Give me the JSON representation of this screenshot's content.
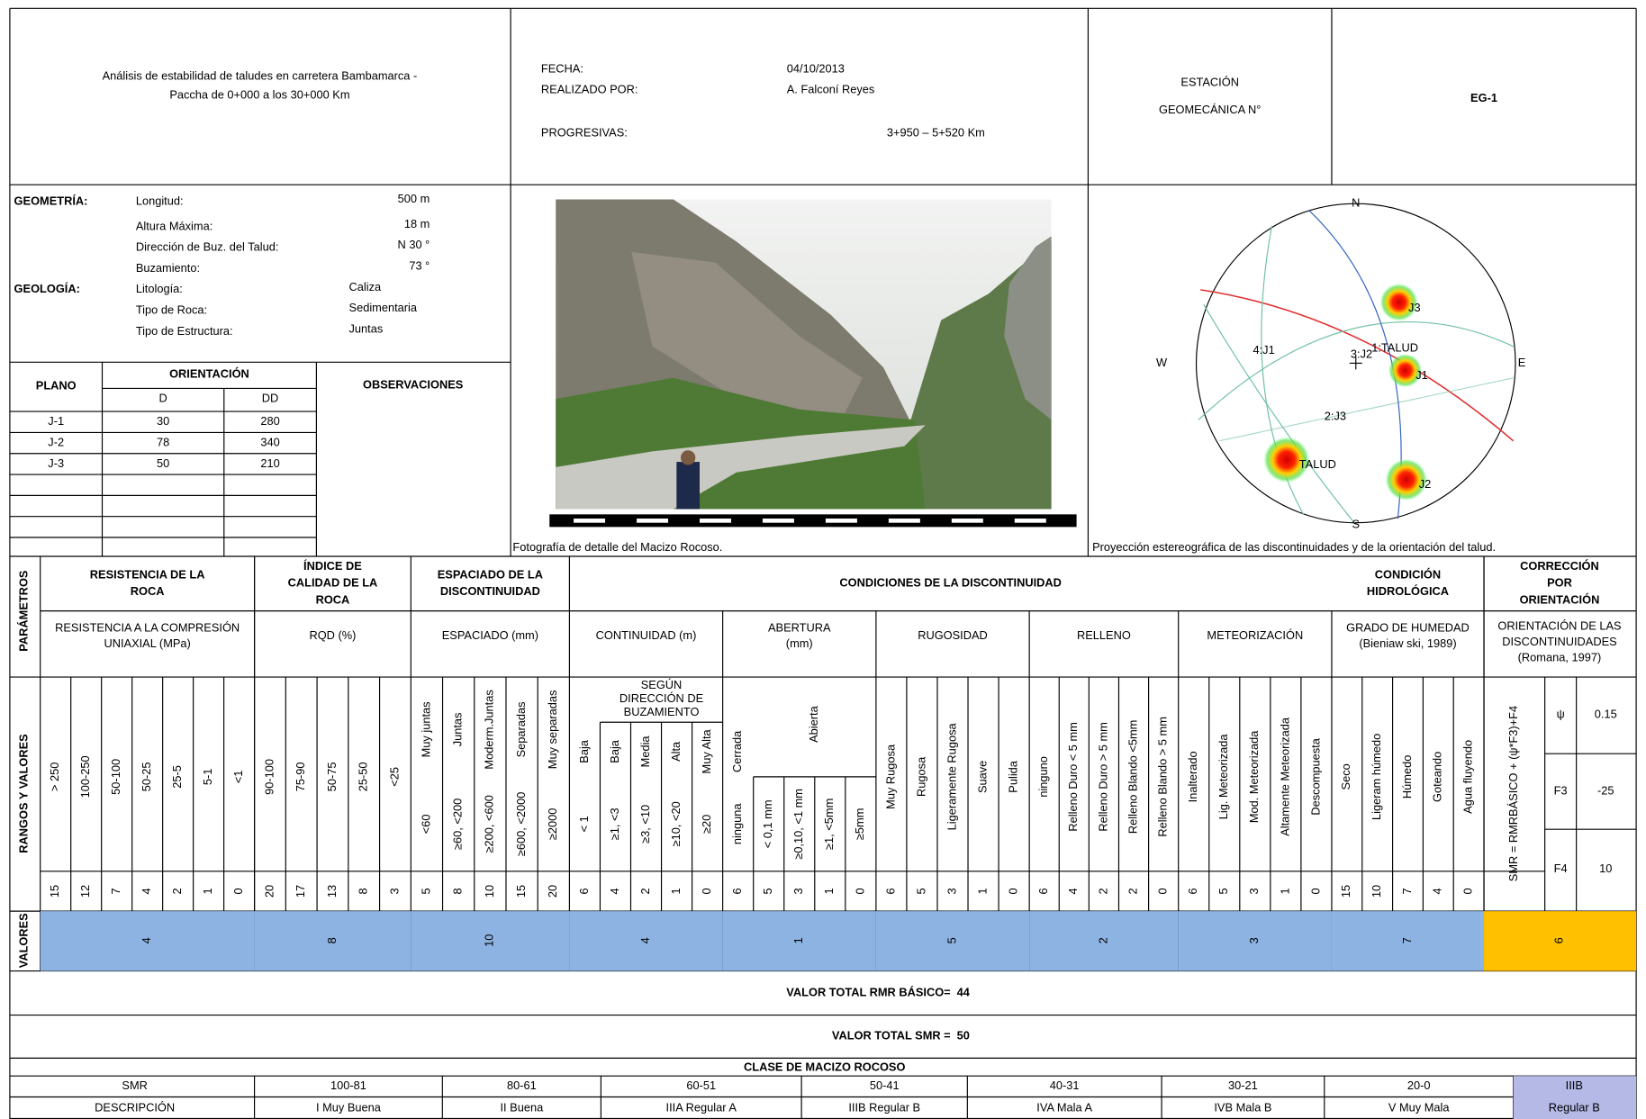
{
  "header": {
    "project": [
      "Análisis de estabilidad de taludes en carretera Bambamarca -",
      "Paccha de 0+000 a los 30+000 Km"
    ],
    "fields": [
      {
        "label": "FECHA:",
        "value": "04/10/2013"
      },
      {
        "label": "REALIZADO POR:",
        "value": "A. Falconí Reyes"
      },
      {
        "label": "PROGRESIVAS:",
        "value": "3+950 – 5+520 Km"
      }
    ],
    "station_label": [
      "ESTACIÓN",
      "GEOMECÁNICA N°"
    ],
    "station": "EG-1"
  },
  "geometry": {
    "title": "GEOMETRÍA:",
    "items": [
      [
        "Longitud:",
        "500 m"
      ],
      [
        "Altura Máxima:",
        "18 m"
      ],
      [
        "Dirección de Buz. del Talud:",
        "N 30 °"
      ],
      [
        "Buzamiento:",
        "73 °"
      ]
    ]
  },
  "geology": {
    "title": "GEOLOGÍA:",
    "items": [
      [
        "Litología:",
        "Caliza"
      ],
      [
        "Tipo de Roca:",
        "Sedimentaria"
      ],
      [
        "Tipo de Estructura:",
        "Juntas"
      ]
    ]
  },
  "planes": {
    "headers": {
      "plane": "PLANO",
      "orientation": "ORIENTACIÓN",
      "d": "D",
      "dd": "DD",
      "observations": "OBSERVACIONES"
    },
    "rows": [
      [
        "J-1",
        30,
        280
      ],
      [
        "J-2",
        78,
        340
      ],
      [
        "J-3",
        50,
        210
      ]
    ]
  },
  "photo": {
    "caption": "Fotografía de detalle del Macizo Rocoso."
  },
  "stereonet": {
    "caption": "Proyección estereográfica de las discontinuidades y de la orientación del talud.",
    "directions": [
      "N",
      "E",
      "S",
      "W"
    ],
    "labels": [
      "4:J1",
      "3:J2",
      "1:TALUD",
      "2:J3"
    ],
    "pole_labels": [
      "J3",
      "J1",
      "TALUD",
      "J2"
    ]
  },
  "parameters": {
    "side_labels": {
      "params": "PARÁMETROS",
      "ranges": "RANGOS Y VALORES",
      "values": "VALORES"
    },
    "conditions_title": "CONDICIONES DE LA DISCONTINUIDAD",
    "groups": [
      {
        "title": [
          "RESISTENCIA DE LA",
          "ROCA"
        ],
        "subtitle": [
          "RESISTENCIA A LA COMPRESIÓN",
          "UNIAXIAL (MPa)"
        ],
        "items": [
          {
            "label": "> 250",
            "rating": 15
          },
          {
            "label": "100-250",
            "rating": 12
          },
          {
            "label": "50-100",
            "rating": 7
          },
          {
            "label": "50-25",
            "rating": 4
          },
          {
            "label": "25-5",
            "rating": 2
          },
          {
            "label": "5-1",
            "rating": 1
          },
          {
            "label": "<1",
            "rating": 0
          }
        ],
        "value": 4
      },
      {
        "title": [
          "ÍNDICE DE",
          "CALIDAD DE LA",
          "ROCA"
        ],
        "subtitle": [
          "RQD (%)"
        ],
        "items": [
          {
            "label": "90-100",
            "rating": 20
          },
          {
            "label": "75-90",
            "rating": 17
          },
          {
            "label": "50-75",
            "rating": 13
          },
          {
            "label": "25-50",
            "rating": 8
          },
          {
            "label": "<25",
            "rating": 3
          }
        ],
        "value": 8
      },
      {
        "title": [
          "ESPACIADO DE LA",
          "DISCONTINUIDAD"
        ],
        "subtitle": [
          "ESPACIADO (mm)"
        ],
        "items": [
          {
            "label": "Muy juntas",
            "range": "<60",
            "rating": 5
          },
          {
            "label": "Juntas",
            "range": "≥60, <200",
            "rating": 8
          },
          {
            "label": "Moderm.Juntas",
            "range": "≥200, <600",
            "rating": 10
          },
          {
            "label": "Separadas",
            "range": "≥600, <2000",
            "rating": 15
          },
          {
            "label": "Muy separadas",
            "range": "≥2000",
            "rating": 20
          }
        ],
        "value": 10
      },
      {
        "subtitle": [
          "CONTINUIDAD (m)"
        ],
        "span_label": [
          "SEGÚN",
          "DIRECCIÓN DE",
          "BUZAMIENTO"
        ],
        "items": [
          {
            "label": "Baja",
            "range": "< 1",
            "rating": 6
          },
          {
            "label": "Baja",
            "range": "≥1, <3",
            "rating": 4
          },
          {
            "label": "Media",
            "range": "≥3, <10",
            "rating": 2
          },
          {
            "label": "Alta",
            "range": "≥10, <20",
            "rating": 1
          },
          {
            "label": "Muy Alta",
            "range": "≥20",
            "rating": 0
          }
        ],
        "value": 4
      },
      {
        "subtitle": [
          "ABERTURA",
          "(mm)"
        ],
        "span_label": [
          "Abierta"
        ],
        "items": [
          {
            "label": "Cerrada",
            "range": "ninguna",
            "rating": 6
          },
          {
            "range": "< 0,1 mm",
            "rating": 5
          },
          {
            "range": "≥0,10, <1 mm",
            "rating": 3
          },
          {
            "range": "≥1, <5mm",
            "rating": 1
          },
          {
            "range": "≥5mm",
            "rating": 0
          }
        ],
        "value": 1
      },
      {
        "subtitle": [
          "RUGOSIDAD"
        ],
        "items": [
          {
            "label": "Muy Rugosa",
            "rating": 6
          },
          {
            "label": "Rugosa",
            "rating": 5
          },
          {
            "label": "Ligeramente Rugosa",
            "rating": 3
          },
          {
            "label": "Suave",
            "rating": 1
          },
          {
            "label": "Pulida",
            "rating": 0
          }
        ],
        "value": 5
      },
      {
        "subtitle": [
          "RELLENO"
        ],
        "items": [
          {
            "label": "ninguno",
            "rating": 6
          },
          {
            "label": "Relleno Duro < 5 mm",
            "rating": 4
          },
          {
            "label": "Relleno Duro > 5 mm",
            "rating": 2
          },
          {
            "label": "Relleno Blando <5mm",
            "rating": 2
          },
          {
            "label": "Relleno Blando > 5 mm",
            "rating": 0
          }
        ],
        "value": 2
      },
      {
        "subtitle": [
          "METEORIZACIÓN"
        ],
        "items": [
          {
            "label": "Inalterado",
            "rating": 6
          },
          {
            "label": "Lig. Meteorizada",
            "rating": 5
          },
          {
            "label": "Mod. Meteorizada",
            "rating": 3
          },
          {
            "label": "Altamente Meteorizada",
            "rating": 1
          },
          {
            "label": "Descompuesta",
            "rating": 0
          }
        ],
        "value": 3
      },
      {
        "title": [
          "CONDICIÓN",
          "HIDROLÓGICA"
        ],
        "subtitle": [
          "GRADO DE HUMEDAD",
          "(Bieniaw ski, 1989)"
        ],
        "items": [
          {
            "label": "Seco",
            "rating": 15
          },
          {
            "label": "Ligeram húmedo",
            "rating": 10
          },
          {
            "label": "Húmedo",
            "rating": 7
          },
          {
            "label": "Goteando",
            "rating": 4
          },
          {
            "label": "Agua fluyendo",
            "rating": 0
          }
        ],
        "value": 7
      }
    ],
    "correction": {
      "title": [
        "CORRECCIÓN",
        "POR",
        "ORIENTACIÓN"
      ],
      "subtitle": [
        "ORIENTACIÓN DE LAS",
        "DISCONTINUIDADES",
        "(Romana, 1997)"
      ],
      "formula": "SMR = RMRBÁSICO + (ψ*F3)+F4",
      "factors": [
        {
          "name": "ψ",
          "value": 0.15
        },
        {
          "name": "F3",
          "value": -25
        },
        {
          "name": "F4",
          "value": 10
        }
      ],
      "value": 6
    }
  },
  "totals": {
    "rmr_label": "VALOR TOTAL RMR BÁSICO=",
    "rmr": 44,
    "smr_label": "VALOR TOTAL SMR =",
    "smr": 50
  },
  "classification": {
    "title": "CLASE DE MACIZO ROCOSO",
    "row_labels": [
      "SMR",
      "DESCRIPCIÓN"
    ],
    "classes": [
      [
        "100-81",
        "I Muy Buena"
      ],
      [
        "80-61",
        "II Buena"
      ],
      [
        "60-51",
        "IIIA Regular A"
      ],
      [
        "50-41",
        "IIIB Regular B"
      ],
      [
        "40-31",
        "IVA Mala A"
      ],
      [
        "30-21",
        "IVB Mala B"
      ],
      [
        "20-0",
        "V Muy Mala"
      ]
    ],
    "result": [
      "IIIB",
      "Regular B"
    ]
  }
}
